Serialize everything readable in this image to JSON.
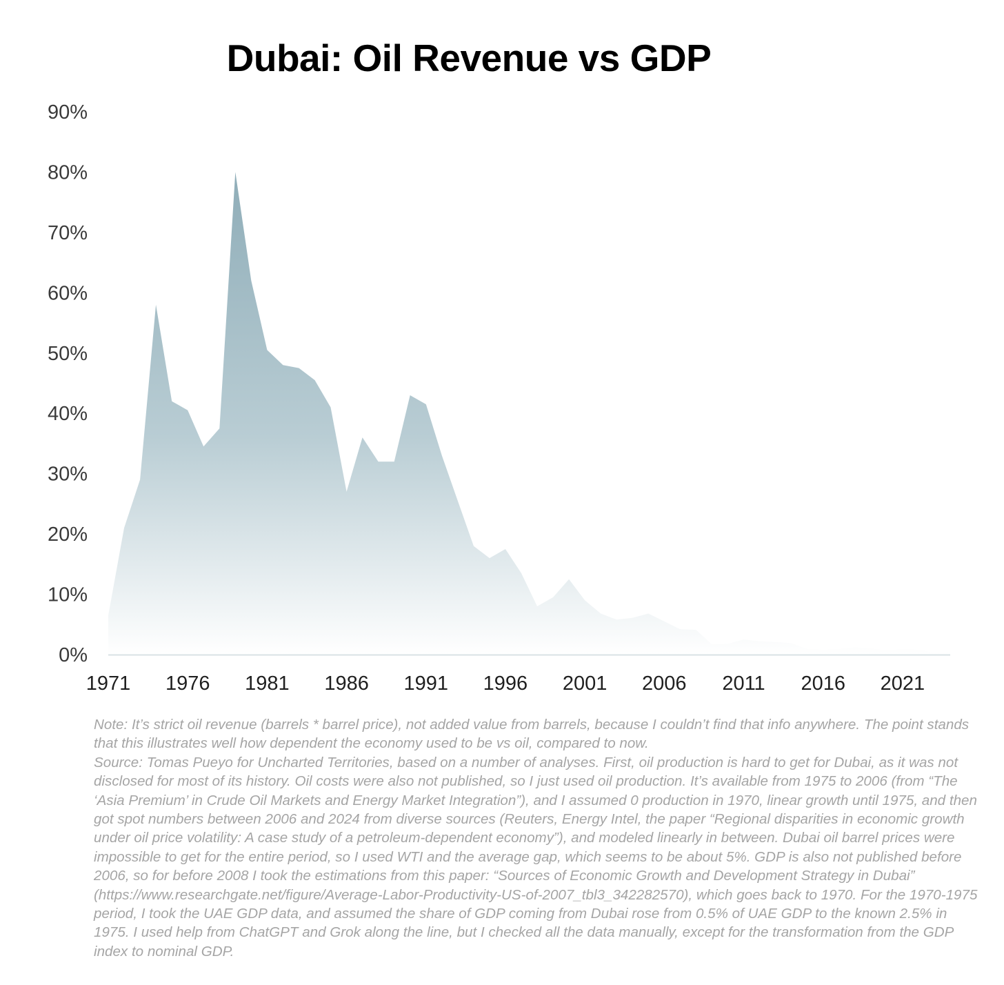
{
  "chart_data": {
    "type": "area",
    "title": "Dubai: Oil Revenue vs GDP",
    "xlabel": "",
    "ylabel": "",
    "x": [
      1971,
      1972,
      1973,
      1974,
      1975,
      1976,
      1977,
      1978,
      1979,
      1980,
      1981,
      1982,
      1983,
      1984,
      1985,
      1986,
      1987,
      1988,
      1989,
      1990,
      1991,
      1992,
      1993,
      1994,
      1995,
      1996,
      1997,
      1998,
      1999,
      2000,
      2001,
      2002,
      2003,
      2004,
      2005,
      2006,
      2007,
      2008,
      2009,
      2010,
      2011,
      2012,
      2013,
      2014,
      2015,
      2016,
      2017,
      2018,
      2019,
      2020,
      2021,
      2022,
      2023,
      2024
    ],
    "series": [
      {
        "name": "Oil revenue as % of GDP",
        "values": [
          6.5,
          21,
          29,
          58,
          42,
          40.5,
          34.5,
          37.5,
          80,
          62,
          50.5,
          48,
          47.5,
          45.5,
          41,
          27,
          36,
          32,
          32,
          43,
          41.5,
          33,
          25.5,
          18,
          16,
          17.5,
          13.5,
          8,
          9.5,
          12.5,
          9,
          6.8,
          5.8,
          6.1,
          6.8,
          5.5,
          4.2,
          4.1,
          1.7,
          1.8,
          2.5,
          2.2,
          2.1,
          1.9,
          0.9,
          0.8,
          0.9,
          1.2,
          1.0,
          0.7,
          0.9,
          0.8,
          0.3,
          0.4
        ]
      }
    ],
    "ylim": [
      0,
      90
    ],
    "yticks": [
      0,
      10,
      20,
      30,
      40,
      50,
      60,
      70,
      80,
      90
    ],
    "ytick_labels": [
      "0%",
      "10%",
      "20%",
      "30%",
      "40%",
      "50%",
      "60%",
      "70%",
      "80%",
      "90%"
    ],
    "xticks": [
      1971,
      1976,
      1981,
      1986,
      1991,
      1996,
      2001,
      2006,
      2011,
      2016,
      2021
    ],
    "xtick_labels": [
      "1971",
      "1976",
      "1981",
      "1986",
      "1991",
      "1996",
      "2001",
      "2006",
      "2011",
      "2016",
      "2021"
    ],
    "grid": false,
    "legend": "none",
    "fill_color_top": "#8fadb8",
    "fill_color_bottom": "#ffffff"
  },
  "notes": {
    "note": "Note: It’s strict oil revenue (barrels * barrel price), not added value from barrels, because I couldn’t find that info anywhere. The point stands that this illustrates well how dependent the economy used to be vs oil, compared to now.",
    "source": "Source: Tomas Pueyo for Uncharted Territories, based on a number of analyses. First, oil production is hard to get for Dubai, as it was not disclosed for most of its history. Oil costs were also not published, so I just used oil production. It’s available from 1975 to 2006 (from “The ‘Asia Premium’ in Crude Oil Markets and Energy Market Integration”), and I assumed 0 production in 1970, linear growth until 1975, and then got spot numbers between 2006 and 2024 from diverse sources (Reuters, Energy Intel, the paper “Regional disparities in economic growth under oil price volatility: A case study of a petroleum-dependent economy”), and modeled linearly in between. Dubai oil barrel prices were impossible to get for the entire period, so I used WTI and the average gap, which seems to be about 5%. GDP is also not published before 2006, so for before 2008 I took the estimations from this paper: “Sources of Economic Growth and Development Strategy in Dubai” (https://www.researchgate.net/figure/Average-Labor-Productivity-US-of-2007_tbl3_342282570), which goes back to 1970. For the 1970-1975 period, I took the UAE GDP data, and assumed the share of GDP coming from Dubai rose from 0.5% of UAE GDP to the known 2.5% in 1975. I used help from ChatGPT and Grok along the line, but I checked all the data manually, except for the transformation from the GDP index to nominal GDP."
  }
}
